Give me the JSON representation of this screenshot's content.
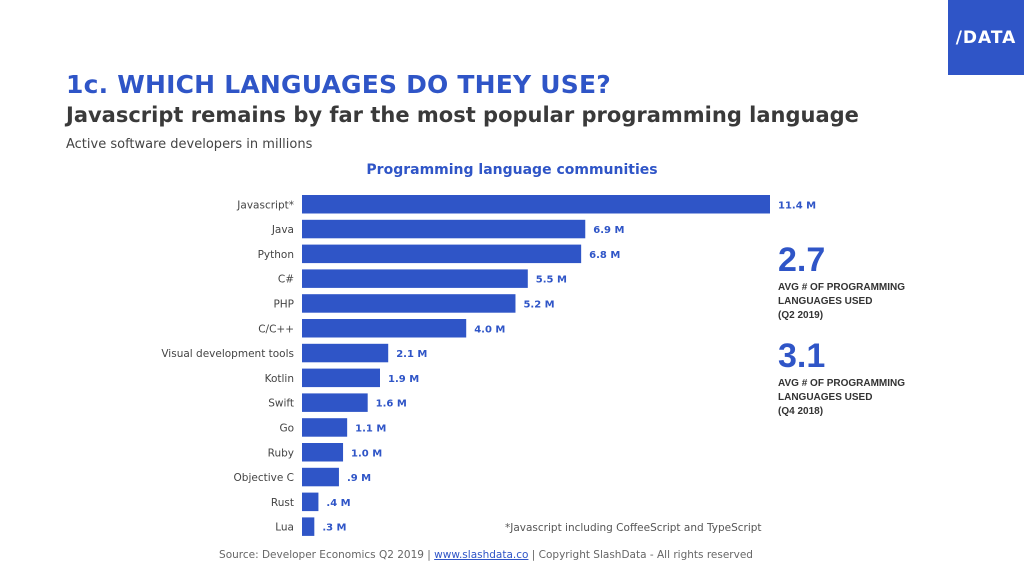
{
  "brand": {
    "logo_text": "/DATA",
    "accent_color": "#2f55c7"
  },
  "header": {
    "title": "1c. WHICH LANGUAGES DO THEY USE?",
    "subtitle": "Javascript remains by far the most popular programming language",
    "caption": "Active software developers in millions"
  },
  "chart_data": {
    "type": "bar",
    "orientation": "horizontal",
    "title": "Programming language communities",
    "categories": [
      "Javascript*",
      "Java",
      "Python",
      "C#",
      "PHP",
      "C/C++",
      "Visual development tools",
      "Kotlin",
      "Swift",
      "Go",
      "Ruby",
      "Objective C",
      "Rust",
      "Lua"
    ],
    "values": [
      11.4,
      6.9,
      6.8,
      5.5,
      5.2,
      4.0,
      2.1,
      1.9,
      1.6,
      1.1,
      1.0,
      0.9,
      0.4,
      0.3
    ],
    "data_labels": [
      "11.4 M",
      "6.9 M",
      "6.8 M",
      "5.5 M",
      "5.2 M",
      "4.0 M",
      "2.1 M",
      "1.9 M",
      "1.6 M",
      "1.1 M",
      "1.0 M",
      ".9 M",
      ".4 M",
      ".3 M"
    ],
    "unit": "M",
    "xlim": [
      0,
      11.4
    ],
    "bar_color": "#2f55c7",
    "grid": false
  },
  "stats": [
    {
      "value": "2.7",
      "label": "AVG # OF PROGRAMMING\nLANGUAGES USED\n(Q2 2019)"
    },
    {
      "value": "3.1",
      "label": "AVG # OF PROGRAMMING\nLANGUAGES USED\n(Q4 2018)"
    }
  ],
  "footnote": "*Javascript including CoffeeScript and TypeScript",
  "source": {
    "prefix": "Source: Developer Economics Q2 2019 | ",
    "link_text": "www.slashdata.co",
    "suffix": " | Copyright SlashData - All rights reserved"
  }
}
